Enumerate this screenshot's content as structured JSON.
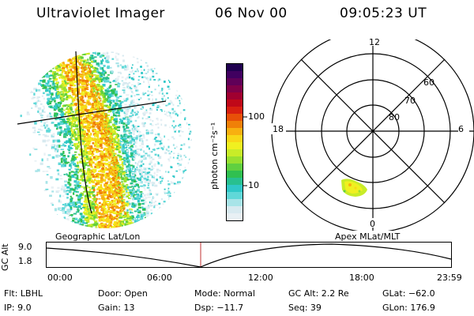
{
  "header": {
    "instrument": "Ultraviolet Imager",
    "date": "06 Nov 00",
    "time": "09:05:23 UT"
  },
  "colorbar": {
    "label": "photon cm⁻²s⁻¹",
    "ticks": [
      "100",
      "10"
    ],
    "colors": [
      "#e8f0f4",
      "#d8eaf0",
      "#a8e4e8",
      "#60d8d8",
      "#30c8c8",
      "#28c090",
      "#30c050",
      "#60d040",
      "#98e030",
      "#c8ec28",
      "#f0f020",
      "#f8d818",
      "#f8b010",
      "#f08008",
      "#e85008",
      "#d82010",
      "#c00818",
      "#a00030",
      "#800048",
      "#600058",
      "#400060",
      "#200050"
    ]
  },
  "left_image": {
    "caption": "Geographic Lat/Lon"
  },
  "polar_plot": {
    "caption": "Apex MLat/MLT",
    "mlt_labels": {
      "top": "12",
      "right": "6",
      "bottom": "0",
      "left": "18"
    },
    "lat_labels": [
      "60",
      "70",
      "80"
    ]
  },
  "timeline": {
    "y_label": "GC Alt",
    "y_ticks": [
      "9.0",
      "1.8"
    ],
    "x_ticks": [
      "00:00",
      "06:00",
      "12:00",
      "18:00",
      "23:59"
    ],
    "marker_color": "#c03030"
  },
  "status": {
    "filter": "Flt: LBHL",
    "ip": "IP:  9.0",
    "door": "Door: Open",
    "gain": "Gain: 13",
    "mode": "Mode: Normal",
    "dsp": "Dsp:  −11.7",
    "gc_alt": "GC Alt: 2.2 Re",
    "seq": "Seq: 39",
    "glat": "GLat: −62.0",
    "glon": "GLon: 176.9"
  }
}
